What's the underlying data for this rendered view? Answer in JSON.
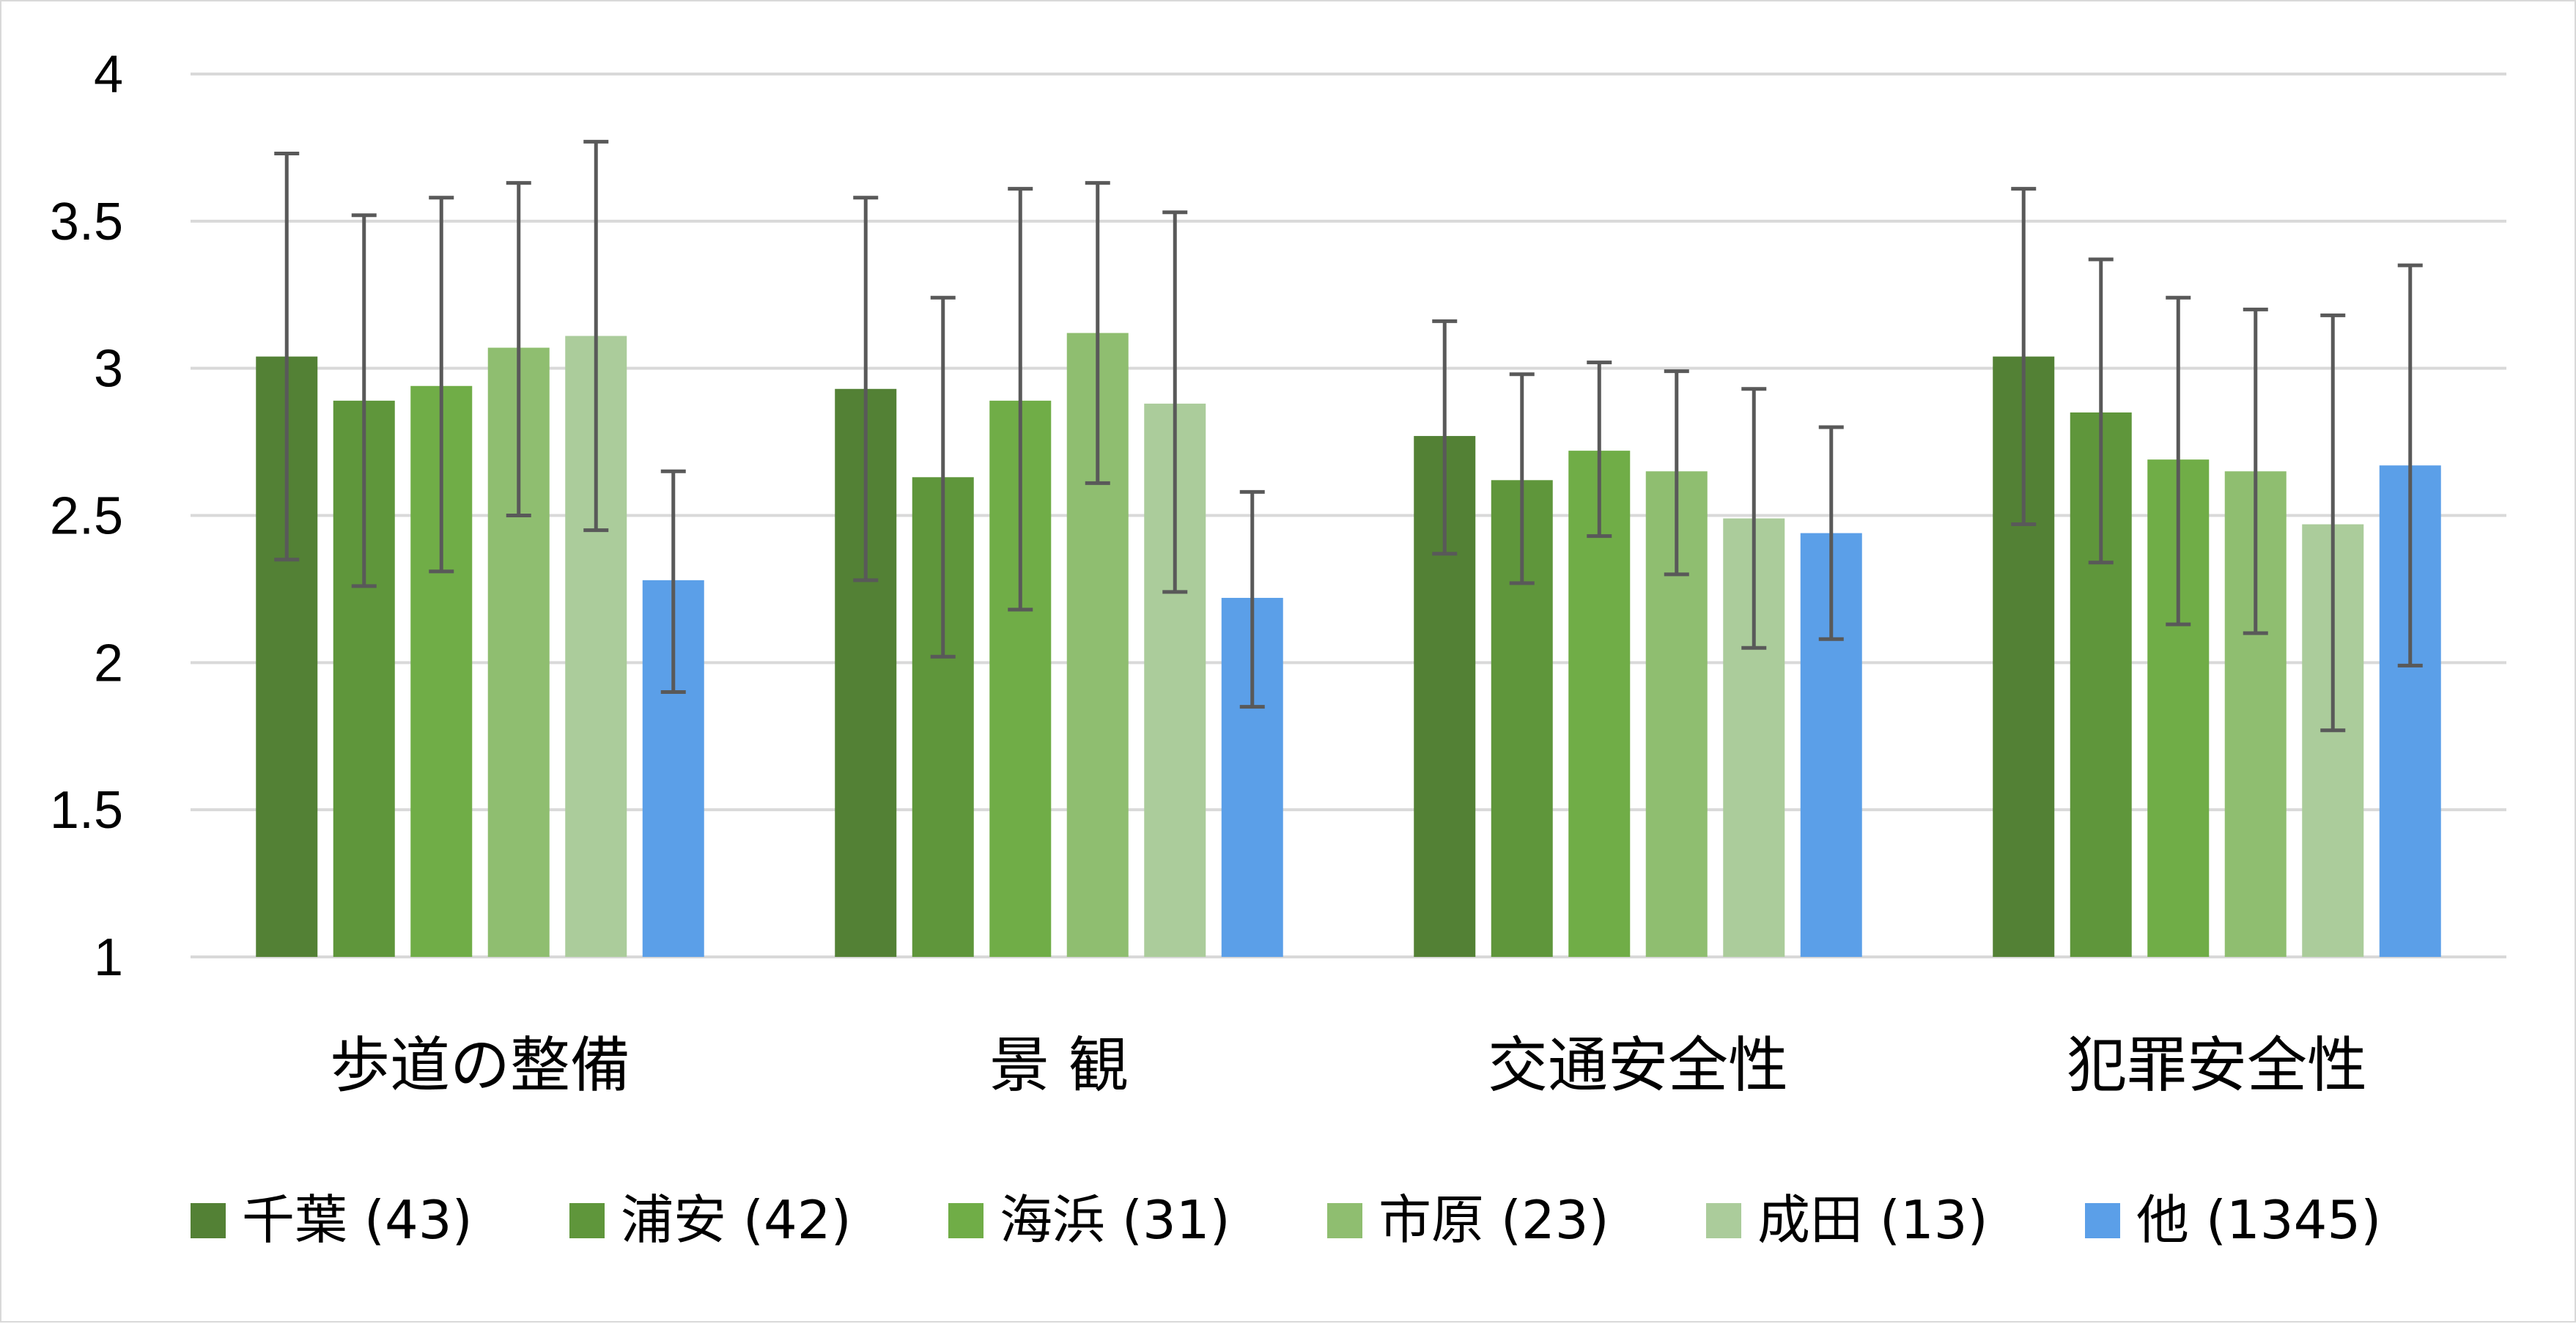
{
  "chart_data": {
    "type": "bar",
    "ylim": [
      1,
      4
    ],
    "y_ticks": [
      "1",
      "1.5",
      "2",
      "2.5",
      "3",
      "3.5",
      "4"
    ],
    "grid": true,
    "legend_position": "bottom",
    "error_bars": true,
    "categories": [
      "歩道の整備",
      "景 観",
      "交通安全性",
      "犯罪安全性"
    ],
    "series": [
      {
        "name": "千葉 (43)",
        "color": "#538135",
        "values": [
          3.04,
          2.93,
          2.77,
          3.04
        ],
        "err_low": [
          2.35,
          2.28,
          2.37,
          2.47
        ],
        "err_high": [
          3.73,
          3.58,
          3.16,
          3.61
        ]
      },
      {
        "name": "浦安 (42)",
        "color": "#5f963b",
        "values": [
          2.89,
          2.63,
          2.62,
          2.85
        ],
        "err_low": [
          2.26,
          2.02,
          2.27,
          2.34
        ],
        "err_high": [
          3.52,
          3.24,
          2.98,
          3.37
        ]
      },
      {
        "name": "海浜 (31)",
        "color": "#70ad47",
        "values": [
          2.94,
          2.89,
          2.72,
          2.69
        ],
        "err_low": [
          2.31,
          2.18,
          2.43,
          2.13
        ],
        "err_high": [
          3.58,
          3.61,
          3.02,
          3.24
        ]
      },
      {
        "name": "市原 (23)",
        "color": "#8fbe70",
        "values": [
          3.07,
          3.12,
          2.65,
          2.65
        ],
        "err_low": [
          2.5,
          2.61,
          2.3,
          2.1
        ],
        "err_high": [
          3.63,
          3.63,
          2.99,
          3.2
        ]
      },
      {
        "name": "成田 (13)",
        "color": "#abcc9b",
        "values": [
          3.11,
          2.88,
          2.49,
          2.47
        ],
        "err_low": [
          2.45,
          2.24,
          2.05,
          1.77
        ],
        "err_high": [
          3.77,
          3.53,
          2.93,
          3.18
        ]
      },
      {
        "name": "他 (1345)",
        "color": "#5b9fe8",
        "values": [
          2.28,
          2.22,
          2.44,
          2.67
        ],
        "err_low": [
          1.9,
          1.85,
          2.08,
          1.99
        ],
        "err_high": [
          2.65,
          2.58,
          2.8,
          3.35
        ]
      }
    ]
  }
}
